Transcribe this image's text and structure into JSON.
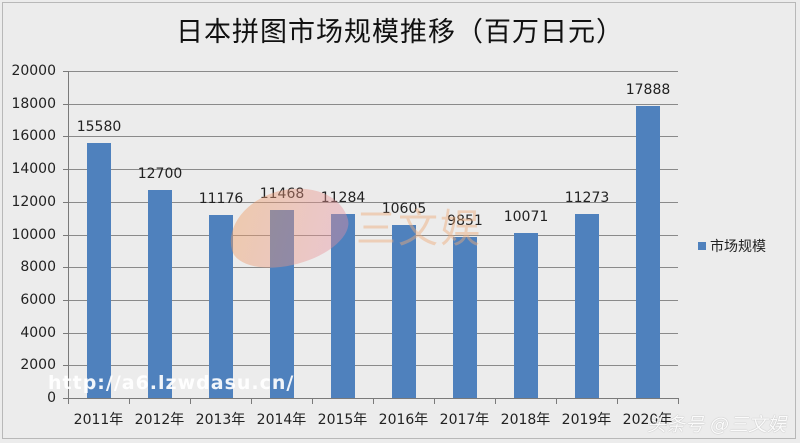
{
  "chart_data": {
    "type": "bar",
    "title": "日本拼图市场规模推移（百万日元）",
    "xlabel": "",
    "ylabel": "",
    "categories": [
      "2011年",
      "2012年",
      "2013年",
      "2014年",
      "2015年",
      "2016年",
      "2017年",
      "2018年",
      "2019年",
      "2020年"
    ],
    "series": [
      {
        "name": "市场规模",
        "color": "#4f81bd",
        "values": [
          15580,
          12700,
          11176,
          11468,
          11284,
          10605,
          9851,
          10071,
          11273,
          17888
        ]
      }
    ],
    "data_labels": [
      "15580",
      "12700",
      "11176",
      "11468",
      "11284",
      "10605",
      "9851",
      "10071",
      "11273",
      "17888"
    ],
    "ylim": [
      0,
      20000
    ],
    "yticks": [
      "0",
      "2000",
      "4000",
      "6000",
      "8000",
      "10000",
      "12000",
      "14000",
      "16000",
      "18000",
      "20000"
    ],
    "grid": true,
    "legend_position": "right"
  },
  "watermarks": {
    "url": "http://a6.lzwdasu.cn/",
    "logo_text": "三文娱",
    "footer": "头条号 @三文娱"
  }
}
